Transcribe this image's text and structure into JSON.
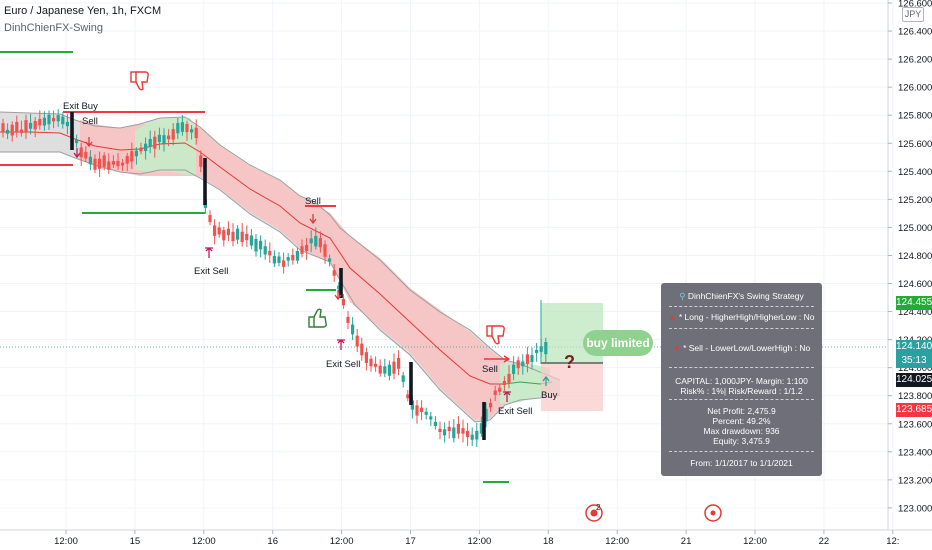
{
  "header": {
    "symbol_line": "Euro / Japanese Yen, 1h, FXCM",
    "indicator": "DinhChienFX-Swing"
  },
  "axis": {
    "currency": "JPY",
    "price_ticks": [
      "126.600",
      "126.400",
      "126.200",
      "126.000",
      "125.800",
      "125.600",
      "125.400",
      "125.200",
      "125.000",
      "124.800",
      "124.600",
      "124.400",
      "124.200",
      "124.000",
      "123.800",
      "123.600",
      "123.400",
      "123.200",
      "123.000"
    ],
    "time_ticks": [
      "12:00",
      "15",
      "12:00",
      "16",
      "12:00",
      "17",
      "12:00",
      "18",
      "12:00",
      "21",
      "12:00",
      "22",
      "12:"
    ]
  },
  "price_labels": {
    "green": "124.455",
    "current": "124.140",
    "countdown": "35:13",
    "dark": "124.025",
    "red": "123.685"
  },
  "annotations": {
    "exit_buy": "Exit Buy",
    "sell1": "Sell",
    "sell2": "Sell",
    "exit_sell1": "Exit Sell",
    "exit_sell2": "Exit Sell",
    "sell3": "Sell",
    "exit_sell3": "Exit Sell",
    "buy": "Buy",
    "question": "?",
    "buy_limited": "buy limited",
    "event_count": "2"
  },
  "panel": {
    "title": "DinhChienFX's Swing Strategy",
    "long_line": "* Long  - HigherHigh/HigherLow : No",
    "sell_line": "* Sell  - LowerLow/LowerHigh : No",
    "capital_line": "CAPITAL: 1,000JPY- Margin: 1:100",
    "risk_line": "Risk% : 1%| Risk/Reward : 1/1.2",
    "net_profit": "Net Profit: 2,475.9",
    "percent": "Percent: 49.2%",
    "max_drawdown": "Max drawdown: 936",
    "equity": "Equity: 3,475.9",
    "from_line": "From: 1/1/2017 to 1/1/2021"
  },
  "colors": {
    "up": "#26a69a",
    "down": "#ef5350",
    "band_red": "#f7c3c3",
    "band_green": "#c8ebc8",
    "band_gray": "#d9d9d9",
    "green_label": "#22ab35",
    "current_label": "#2c9fa0",
    "dark_label": "#131722",
    "red_label": "#f23645"
  }
}
